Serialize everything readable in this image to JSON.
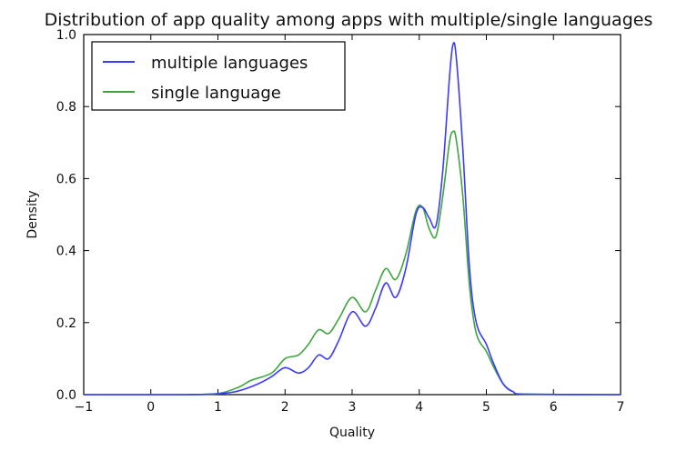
{
  "chart_data": {
    "type": "line",
    "title": "Distribution of app quality among apps with multiple/single languages",
    "xlabel": "Quality",
    "ylabel": "Density",
    "xlim": [
      -1,
      7
    ],
    "ylim": [
      0,
      1.0
    ],
    "xticks": [
      "−1",
      "0",
      "1",
      "2",
      "3",
      "4",
      "5",
      "6",
      "7"
    ],
    "yticks": [
      "0.0",
      "0.2",
      "0.4",
      "0.6",
      "0.8",
      "1.0"
    ],
    "grid": false,
    "legend_position": "top-left",
    "series": [
      {
        "name": "multiple languages",
        "color": "#3b3bff",
        "points": [
          [
            -1,
            0
          ],
          [
            0.5,
            0
          ],
          [
            1.0,
            0.002
          ],
          [
            1.3,
            0.01
          ],
          [
            1.6,
            0.03
          ],
          [
            1.8,
            0.05
          ],
          [
            2.0,
            0.075
          ],
          [
            2.2,
            0.06
          ],
          [
            2.35,
            0.075
          ],
          [
            2.5,
            0.11
          ],
          [
            2.65,
            0.1
          ],
          [
            2.8,
            0.15
          ],
          [
            3.0,
            0.23
          ],
          [
            3.2,
            0.19
          ],
          [
            3.35,
            0.24
          ],
          [
            3.5,
            0.31
          ],
          [
            3.65,
            0.27
          ],
          [
            3.8,
            0.35
          ],
          [
            3.95,
            0.5
          ],
          [
            4.05,
            0.52
          ],
          [
            4.15,
            0.49
          ],
          [
            4.25,
            0.47
          ],
          [
            4.35,
            0.62
          ],
          [
            4.45,
            0.88
          ],
          [
            4.5,
            0.97
          ],
          [
            4.55,
            0.94
          ],
          [
            4.65,
            0.68
          ],
          [
            4.75,
            0.35
          ],
          [
            4.85,
            0.2
          ],
          [
            5.0,
            0.14
          ],
          [
            5.1,
            0.09
          ],
          [
            5.25,
            0.03
          ],
          [
            5.4,
            0.008
          ],
          [
            5.6,
            0.001
          ],
          [
            7,
            0
          ]
        ]
      },
      {
        "name": "single language",
        "color": "#3da63d",
        "points": [
          [
            -1,
            0
          ],
          [
            0.5,
            0
          ],
          [
            1.0,
            0.003
          ],
          [
            1.3,
            0.02
          ],
          [
            1.5,
            0.04
          ],
          [
            1.8,
            0.06
          ],
          [
            2.0,
            0.1
          ],
          [
            2.2,
            0.11
          ],
          [
            2.35,
            0.14
          ],
          [
            2.5,
            0.18
          ],
          [
            2.65,
            0.17
          ],
          [
            2.8,
            0.21
          ],
          [
            3.0,
            0.27
          ],
          [
            3.2,
            0.23
          ],
          [
            3.35,
            0.29
          ],
          [
            3.5,
            0.35
          ],
          [
            3.65,
            0.32
          ],
          [
            3.8,
            0.39
          ],
          [
            3.95,
            0.51
          ],
          [
            4.05,
            0.52
          ],
          [
            4.15,
            0.46
          ],
          [
            4.25,
            0.44
          ],
          [
            4.35,
            0.55
          ],
          [
            4.45,
            0.7
          ],
          [
            4.5,
            0.73
          ],
          [
            4.55,
            0.71
          ],
          [
            4.65,
            0.55
          ],
          [
            4.75,
            0.3
          ],
          [
            4.85,
            0.17
          ],
          [
            5.0,
            0.12
          ],
          [
            5.1,
            0.08
          ],
          [
            5.25,
            0.03
          ],
          [
            5.4,
            0.008
          ],
          [
            5.6,
            0.001
          ],
          [
            7,
            0
          ]
        ]
      }
    ]
  }
}
